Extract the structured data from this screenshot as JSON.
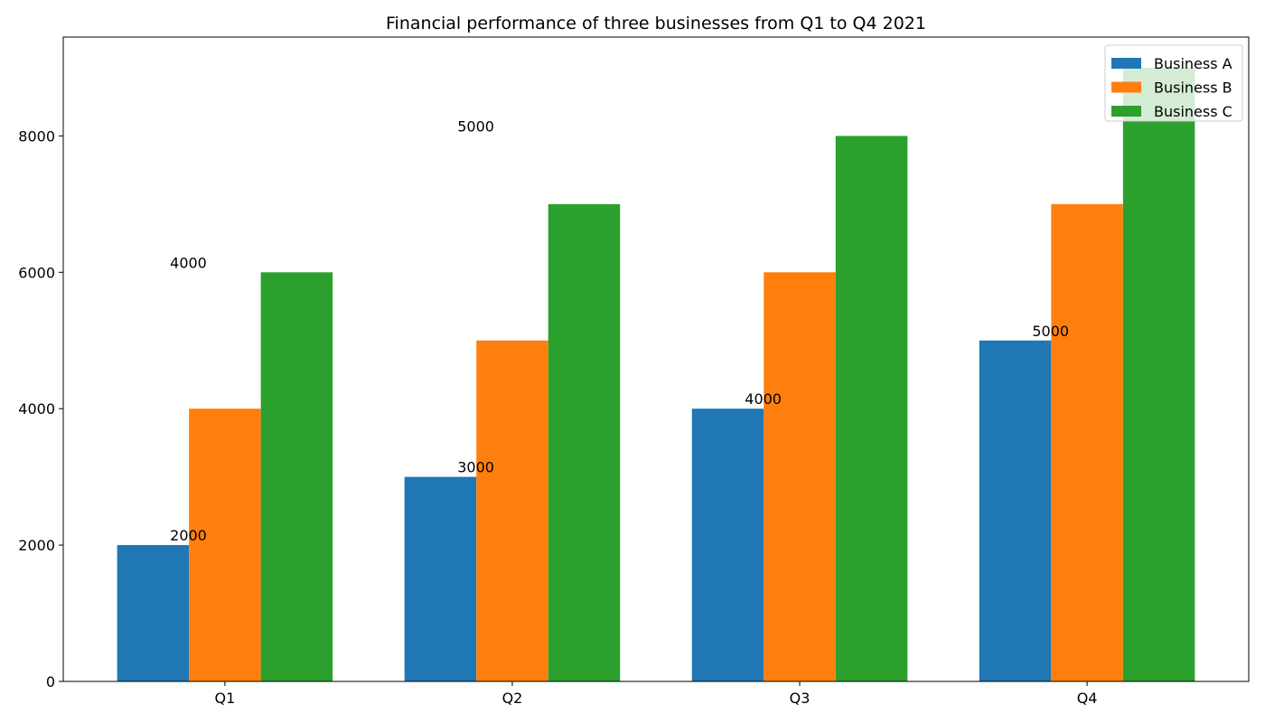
{
  "chart_data": {
    "type": "bar",
    "title": "Financial performance of three businesses from Q1 to Q4 2021",
    "xlabel": "",
    "ylabel": "",
    "categories": [
      "Q1",
      "Q2",
      "Q3",
      "Q4"
    ],
    "series": [
      {
        "name": "Business A",
        "values": [
          2000,
          3000,
          4000,
          5000
        ],
        "color": "#1f77b4"
      },
      {
        "name": "Business B",
        "values": [
          4000,
          5000,
          6000,
          7000
        ],
        "color": "#ff7f0e"
      },
      {
        "name": "Business C",
        "values": [
          6000,
          7000,
          8000,
          9000
        ],
        "color": "#2ca02c"
      }
    ],
    "annotations": [
      {
        "text": "2000",
        "category": "Q1",
        "y": 2000
      },
      {
        "text": "4000",
        "category": "Q1",
        "y": 6000
      },
      {
        "text": "3000",
        "category": "Q2",
        "y": 3000
      },
      {
        "text": "5000",
        "category": "Q2",
        "y": 8000
      },
      {
        "text": "4000",
        "category": "Q3",
        "y": 4000
      },
      {
        "text": "5000",
        "category": "Q4",
        "y": 5000
      }
    ],
    "ylim": [
      0,
      9450
    ],
    "yticks": [
      0,
      2000,
      4000,
      6000,
      8000
    ],
    "grid": false,
    "legend_position": "top-right"
  }
}
